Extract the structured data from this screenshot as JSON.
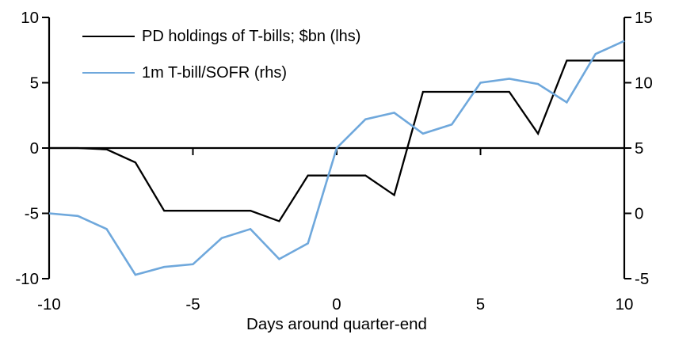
{
  "chart_data": {
    "type": "line",
    "title": "",
    "xlabel": "Days around quarter-end",
    "ylabel_left": "",
    "ylabel_right": "",
    "grid": false,
    "legend_position": "top-left-inside",
    "x_range": [
      -10,
      10
    ],
    "x": [
      -10,
      -9,
      -8,
      -7,
      -6,
      -5,
      -4,
      -3,
      -2,
      -1,
      0,
      1,
      2,
      3,
      4,
      5,
      6,
      7,
      8,
      9,
      10
    ],
    "x_ticks": [
      {
        "value": -10,
        "label": "-10"
      },
      {
        "value": -5,
        "label": "-5"
      },
      {
        "value": 0,
        "label": "0"
      },
      {
        "value": 5,
        "label": "5"
      },
      {
        "value": 10,
        "label": "10"
      }
    ],
    "left_axis": {
      "range": [
        -10,
        10
      ],
      "ticks": [
        {
          "value": 10,
          "label": "10"
        },
        {
          "value": 5,
          "label": "5"
        },
        {
          "value": 0,
          "label": "0"
        },
        {
          "value": -5,
          "label": "-5"
        },
        {
          "value": -10,
          "label": "-10"
        }
      ]
    },
    "right_axis": {
      "range": [
        -5,
        15
      ],
      "ticks": [
        {
          "value": 15,
          "label": "15"
        },
        {
          "value": 10,
          "label": "10"
        },
        {
          "value": 5,
          "label": "5"
        },
        {
          "value": 0,
          "label": "0"
        },
        {
          "value": -5,
          "label": "-5"
        }
      ]
    },
    "zero_line_left_value": 0,
    "axis_color": "#000000",
    "series": [
      {
        "name": "PD holdings of T-bills; $bn (lhs)",
        "axis": "left",
        "color": "#000000",
        "stroke_width": 2.3,
        "values": [
          0,
          0,
          -0.1,
          -1.1,
          -4.8,
          -4.8,
          -4.8,
          -4.8,
          -5.6,
          -2.1,
          -2.1,
          -2.1,
          -3.6,
          4.3,
          4.3,
          4.3,
          4.3,
          1.1,
          6.7,
          6.7,
          6.7
        ]
      },
      {
        "name": "1m T-bill/SOFR (rhs)",
        "axis": "right",
        "color": "#6FA8DC",
        "stroke_width": 2.6,
        "values": [
          0.0,
          -0.2,
          -1.2,
          -4.7,
          -4.1,
          -3.9,
          -1.9,
          -1.2,
          -3.5,
          -2.3,
          5.0,
          7.2,
          7.7,
          6.1,
          6.8,
          10.0,
          10.3,
          9.9,
          8.5,
          12.2,
          13.2
        ]
      }
    ]
  }
}
